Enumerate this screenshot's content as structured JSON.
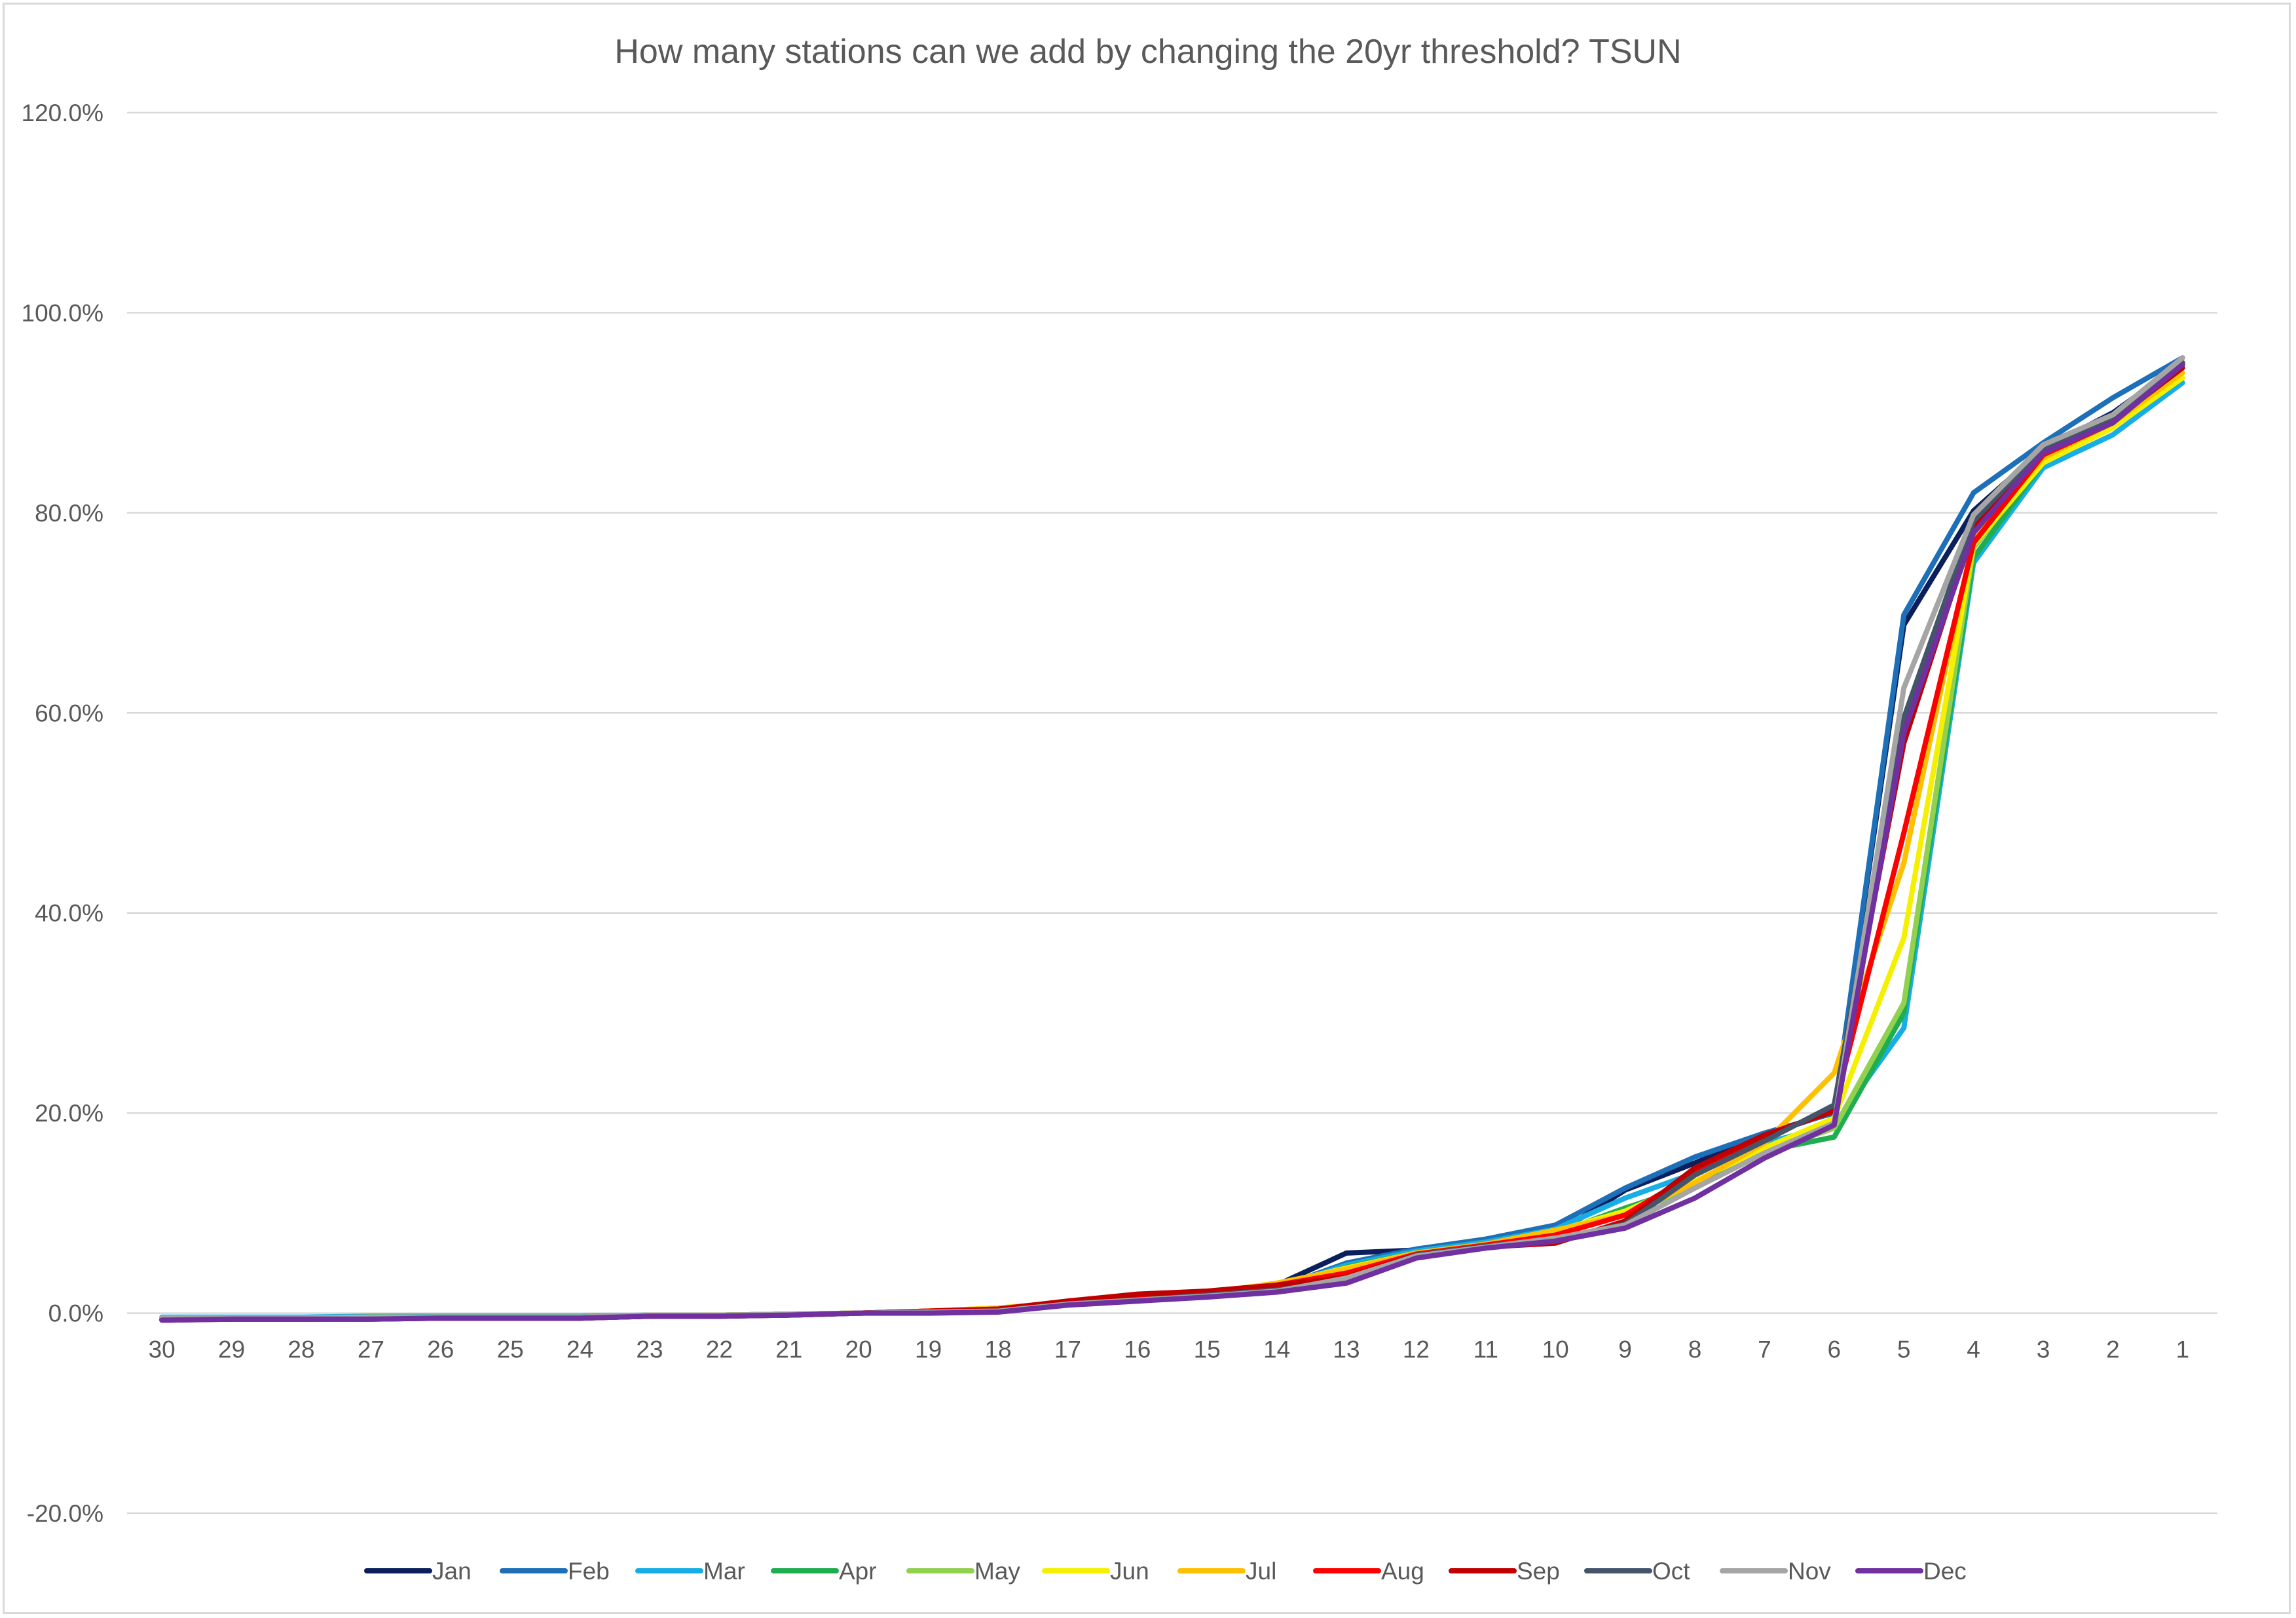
{
  "chart_data": {
    "type": "line",
    "title": "How many stations can we add by changing the 20yr threshold? TSUN",
    "xlabel": "",
    "ylabel": "",
    "categories": [
      "30",
      "29",
      "28",
      "27",
      "26",
      "25",
      "24",
      "23",
      "22",
      "21",
      "20",
      "19",
      "18",
      "17",
      "16",
      "15",
      "14",
      "13",
      "12",
      "11",
      "10",
      "9",
      "8",
      "7",
      "6",
      "5",
      "4",
      "3",
      "2",
      "1"
    ],
    "ylim": [
      -20,
      120
    ],
    "y_ticks": [
      -20,
      0,
      20,
      40,
      60,
      80,
      100,
      120
    ],
    "y_tick_labels": [
      "-20.0%",
      "0.0%",
      "20.0%",
      "40.0%",
      "60.0%",
      "80.0%",
      "100.0%",
      "120.0%"
    ],
    "grid": "horizontal",
    "legend_position": "bottom",
    "series": [
      {
        "name": "Jan",
        "color": "#0b1f5c",
        "values": [
          -0.6,
          -0.5,
          -0.5,
          -0.5,
          -0.4,
          -0.4,
          -0.4,
          -0.2,
          -0.2,
          -0.1,
          0.0,
          0.1,
          0.3,
          0.9,
          1.4,
          1.9,
          2.8,
          6.0,
          6.3,
          6.8,
          7.9,
          12.3,
          15.0,
          17.8,
          20.1,
          68.8,
          80.2,
          86.4,
          90.0,
          95.0
        ]
      },
      {
        "name": "Feb",
        "color": "#1d6fb8",
        "values": [
          -0.6,
          -0.5,
          -0.5,
          -0.5,
          -0.4,
          -0.4,
          -0.4,
          -0.2,
          -0.2,
          -0.1,
          0.0,
          0.1,
          0.3,
          0.9,
          1.4,
          1.9,
          2.5,
          5.0,
          6.4,
          7.4,
          8.8,
          12.5,
          15.6,
          18.0,
          20.0,
          69.8,
          82.0,
          87.0,
          91.5,
          95.5
        ]
      },
      {
        "name": "Mar",
        "color": "#17aee6",
        "values": [
          -0.4,
          -0.4,
          -0.4,
          -0.3,
          -0.3,
          -0.3,
          -0.3,
          -0.2,
          -0.2,
          -0.1,
          0.0,
          0.1,
          0.3,
          0.9,
          1.3,
          1.7,
          2.5,
          4.8,
          6.2,
          7.1,
          8.4,
          11.5,
          14.0,
          17.0,
          18.8,
          28.5,
          75.0,
          84.5,
          87.8,
          93.0
        ]
      },
      {
        "name": "Apr",
        "color": "#1fae4f",
        "values": [
          -0.5,
          -0.5,
          -0.5,
          -0.5,
          -0.4,
          -0.4,
          -0.4,
          -0.3,
          -0.2,
          -0.1,
          0.0,
          0.1,
          0.3,
          0.9,
          1.4,
          1.8,
          2.4,
          4.6,
          6.0,
          6.9,
          8.0,
          10.5,
          12.8,
          16.2,
          17.6,
          30.0,
          75.5,
          85.0,
          88.8,
          94.5
        ]
      },
      {
        "name": "May",
        "color": "#92d050",
        "values": [
          -0.5,
          -0.5,
          -0.5,
          -0.5,
          -0.4,
          -0.4,
          -0.4,
          -0.3,
          -0.2,
          -0.1,
          0.0,
          0.2,
          0.5,
          1.0,
          1.4,
          1.8,
          2.6,
          4.2,
          5.9,
          6.8,
          7.9,
          10.0,
          12.5,
          16.0,
          18.5,
          31.0,
          76.5,
          85.5,
          89.0,
          95.0
        ]
      },
      {
        "name": "Jun",
        "color": "#f5f000",
        "values": [
          -0.5,
          -0.5,
          -0.5,
          -0.5,
          -0.4,
          -0.4,
          -0.4,
          -0.3,
          -0.2,
          -0.1,
          0.0,
          0.2,
          0.5,
          1.1,
          1.5,
          1.9,
          2.9,
          4.5,
          6.0,
          6.9,
          8.2,
          10.2,
          13.2,
          16.5,
          19.5,
          37.5,
          76.8,
          85.0,
          88.5,
          93.5
        ]
      },
      {
        "name": "Jul",
        "color": "#ffc000",
        "values": [
          -0.5,
          -0.5,
          -0.5,
          -0.4,
          -0.4,
          -0.4,
          -0.4,
          -0.2,
          -0.2,
          -0.1,
          0.0,
          0.2,
          0.5,
          1.1,
          1.6,
          2.0,
          3.0,
          4.4,
          6.0,
          6.9,
          8.3,
          9.8,
          13.0,
          17.0,
          24.0,
          45.0,
          77.5,
          85.5,
          89.0,
          94.0
        ]
      },
      {
        "name": "Aug",
        "color": "#ff0000",
        "values": [
          -0.6,
          -0.6,
          -0.6,
          -0.5,
          -0.5,
          -0.5,
          -0.5,
          -0.3,
          -0.3,
          -0.2,
          0.0,
          0.2,
          0.4,
          1.2,
          1.8,
          2.1,
          2.8,
          4.0,
          5.9,
          6.8,
          7.8,
          9.8,
          14.0,
          17.5,
          20.5,
          48.0,
          77.0,
          85.8,
          89.0,
          94.8
        ]
      },
      {
        "name": "Sep",
        "color": "#c00000",
        "values": [
          -0.7,
          -0.6,
          -0.6,
          -0.6,
          -0.5,
          -0.5,
          -0.5,
          -0.3,
          -0.3,
          -0.2,
          0.0,
          0.2,
          0.4,
          1.2,
          1.9,
          2.2,
          2.8,
          3.6,
          5.8,
          6.6,
          7.0,
          9.2,
          14.5,
          17.8,
          20.2,
          57.0,
          78.5,
          86.0,
          89.2,
          94.5
        ]
      },
      {
        "name": "Oct",
        "color": "#44546a",
        "values": [
          -0.6,
          -0.6,
          -0.6,
          -0.6,
          -0.5,
          -0.5,
          -0.5,
          -0.3,
          -0.3,
          -0.2,
          0.0,
          0.1,
          0.2,
          0.9,
          1.3,
          1.8,
          2.3,
          3.3,
          5.8,
          6.7,
          7.4,
          8.9,
          13.8,
          17.2,
          20.8,
          59.5,
          79.2,
          86.5,
          89.5,
          95.0
        ]
      },
      {
        "name": "Nov",
        "color": "#a5a5a5",
        "values": [
          -0.5,
          -0.5,
          -0.5,
          -0.5,
          -0.4,
          -0.4,
          -0.4,
          -0.2,
          -0.2,
          -0.1,
          0.0,
          0.1,
          0.2,
          0.9,
          1.3,
          1.7,
          2.2,
          3.5,
          5.7,
          6.6,
          7.5,
          8.8,
          12.5,
          16.0,
          19.0,
          62.5,
          79.8,
          86.8,
          89.8,
          95.5
        ]
      },
      {
        "name": "Dec",
        "color": "#7030a0",
        "values": [
          -0.7,
          -0.6,
          -0.6,
          -0.6,
          -0.5,
          -0.5,
          -0.5,
          -0.3,
          -0.3,
          -0.2,
          0.0,
          0.0,
          0.1,
          0.8,
          1.2,
          1.6,
          2.1,
          3.0,
          5.5,
          6.5,
          7.2,
          8.5,
          11.5,
          15.5,
          18.8,
          58.0,
          78.0,
          86.0,
          89.0,
          94.8
        ]
      }
    ]
  }
}
